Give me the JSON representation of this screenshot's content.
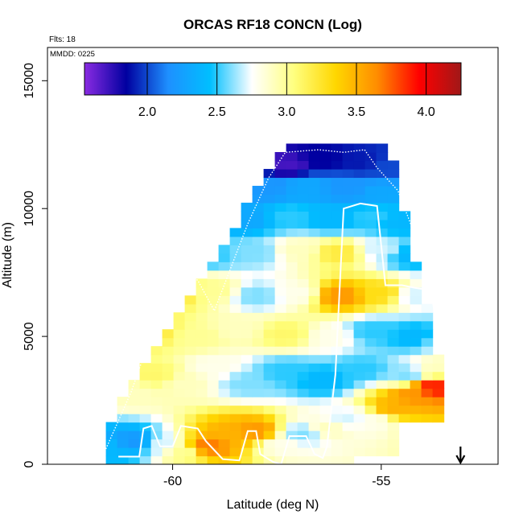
{
  "chart_data": {
    "type": "heatmap",
    "title": "ORCAS RF18 CONCN (Log)",
    "subtitle": "Flts: 18",
    "xlabel": "Latitude (deg N)",
    "ylabel": "Altitude (m)",
    "xlim": [
      -63,
      -52.2
    ],
    "ylim": [
      0,
      16300
    ],
    "x_ticks": [
      -60,
      -55
    ],
    "x_tick_labels": [
      "-60",
      "-55"
    ],
    "y_ticks": [
      0,
      5000,
      10000,
      15000
    ],
    "y_tick_labels": [
      "0",
      "5000",
      "10000",
      "15000"
    ],
    "annotation": "MMDD: 0225",
    "arrow_marker": {
      "x": -53.1,
      "direction": "down"
    },
    "colorbar": {
      "range": [
        1.55,
        4.25
      ],
      "ticks": [
        2.0,
        2.5,
        3.0,
        3.5,
        4.0
      ],
      "tick_labels": [
        "2.0",
        "2.5",
        "3.0",
        "3.5",
        "4.0"
      ],
      "colors": [
        "#8a2be2",
        "#0000a0",
        "#1e90ff",
        "#00bfff",
        "#ffffff",
        "#ffff80",
        "#ffd700",
        "#ff8c00",
        "#ff0000",
        "#a01818"
      ]
    },
    "cell_size": {
      "dx": 0.27,
      "dy": 330
    },
    "anchors": [
      {
        "x": -61.5,
        "y": 600,
        "v": 2.4
      },
      {
        "x": -60.9,
        "y": 900,
        "v": 2.2
      },
      {
        "x": -60.3,
        "y": 800,
        "v": 2.7
      },
      {
        "x": -59.7,
        "y": 500,
        "v": 3.0
      },
      {
        "x": -59.2,
        "y": 700,
        "v": 3.7
      },
      {
        "x": -58.6,
        "y": 1200,
        "v": 3.5
      },
      {
        "x": -58.0,
        "y": 1300,
        "v": 3.6
      },
      {
        "x": -57.4,
        "y": 800,
        "v": 2.8
      },
      {
        "x": -56.9,
        "y": 1200,
        "v": 2.6
      },
      {
        "x": -56.3,
        "y": 1400,
        "v": 2.9
      },
      {
        "x": -55.8,
        "y": 1800,
        "v": 2.7
      },
      {
        "x": -55.2,
        "y": 1700,
        "v": 2.8
      },
      {
        "x": -54.7,
        "y": 2200,
        "v": 3.5
      },
      {
        "x": -54.2,
        "y": 2700,
        "v": 3.6
      },
      {
        "x": -53.8,
        "y": 3000,
        "v": 3.9
      },
      {
        "x": -61.0,
        "y": 2800,
        "v": 2.9
      },
      {
        "x": -60.4,
        "y": 3500,
        "v": 3.1
      },
      {
        "x": -59.7,
        "y": 3200,
        "v": 2.9
      },
      {
        "x": -59.0,
        "y": 3800,
        "v": 2.8
      },
      {
        "x": -58.2,
        "y": 3200,
        "v": 2.6
      },
      {
        "x": -57.3,
        "y": 3600,
        "v": 2.5
      },
      {
        "x": -56.4,
        "y": 3300,
        "v": 2.4
      },
      {
        "x": -55.4,
        "y": 3700,
        "v": 2.5
      },
      {
        "x": -54.4,
        "y": 3500,
        "v": 2.6
      },
      {
        "x": -53.6,
        "y": 3800,
        "v": 2.9
      },
      {
        "x": -60.5,
        "y": 5200,
        "v": 3.2
      },
      {
        "x": -59.4,
        "y": 5000,
        "v": 3.0
      },
      {
        "x": -58.4,
        "y": 5300,
        "v": 2.9
      },
      {
        "x": -57.3,
        "y": 5100,
        "v": 3.1
      },
      {
        "x": -56.2,
        "y": 5000,
        "v": 2.8
      },
      {
        "x": -55.2,
        "y": 5200,
        "v": 2.5
      },
      {
        "x": -54.2,
        "y": 5000,
        "v": 2.4
      },
      {
        "x": -53.5,
        "y": 4800,
        "v": 2.7
      },
      {
        "x": -60.0,
        "y": 6800,
        "v": 3.3
      },
      {
        "x": -59.0,
        "y": 6800,
        "v": 3.0
      },
      {
        "x": -58.0,
        "y": 6600,
        "v": 2.6
      },
      {
        "x": -57.0,
        "y": 6700,
        "v": 2.8
      },
      {
        "x": -56.0,
        "y": 6600,
        "v": 3.6
      },
      {
        "x": -55.0,
        "y": 6700,
        "v": 3.3
      },
      {
        "x": -54.2,
        "y": 6600,
        "v": 2.7
      },
      {
        "x": -59.2,
        "y": 8200,
        "v": 2.5
      },
      {
        "x": -58.0,
        "y": 8300,
        "v": 2.6
      },
      {
        "x": -57.0,
        "y": 8400,
        "v": 2.9
      },
      {
        "x": -56.0,
        "y": 8300,
        "v": 3.2
      },
      {
        "x": -55.0,
        "y": 8400,
        "v": 2.7
      },
      {
        "x": -54.3,
        "y": 8200,
        "v": 2.4
      },
      {
        "x": -58.2,
        "y": 9600,
        "v": 2.3
      },
      {
        "x": -57.2,
        "y": 9700,
        "v": 2.5
      },
      {
        "x": -56.2,
        "y": 9600,
        "v": 2.4
      },
      {
        "x": -55.2,
        "y": 9700,
        "v": 2.5
      },
      {
        "x": -54.6,
        "y": 9500,
        "v": 2.4
      },
      {
        "x": -57.8,
        "y": 10800,
        "v": 2.2
      },
      {
        "x": -56.8,
        "y": 10900,
        "v": 2.3
      },
      {
        "x": -55.8,
        "y": 10800,
        "v": 2.2
      },
      {
        "x": -55.0,
        "y": 10700,
        "v": 2.3
      },
      {
        "x": -57.2,
        "y": 11700,
        "v": 1.7
      },
      {
        "x": -56.4,
        "y": 11900,
        "v": 1.85
      },
      {
        "x": -55.5,
        "y": 11800,
        "v": 1.9
      },
      {
        "x": -54.9,
        "y": 11600,
        "v": 2.0
      }
    ],
    "envelope": [
      {
        "x_left": -61.5,
        "x_right": -58.9,
        "y_bottom": 0,
        "y_top": 1500
      },
      {
        "x_left": -58.9,
        "x_right": -57.8,
        "y_bottom": 0,
        "y_top": 1700
      },
      {
        "x_left": -57.8,
        "x_right": -56.7,
        "y_bottom": 0,
        "y_top": 1500
      },
      {
        "x_left": -56.7,
        "x_right": -55.6,
        "y_bottom": 0,
        "y_top": 1800
      },
      {
        "x_left": -55.6,
        "x_right": -54.6,
        "y_bottom": 300,
        "y_top": 2000
      },
      {
        "x_left": -54.6,
        "x_right": -53.5,
        "y_bottom": 1600,
        "y_top": 2800
      }
    ],
    "flight_track_solid": [
      [
        -61.3,
        300
      ],
      [
        -60.8,
        300
      ],
      [
        -60.7,
        1400
      ],
      [
        -60.5,
        1500
      ],
      [
        -60.3,
        700
      ],
      [
        -60.0,
        700
      ],
      [
        -59.8,
        1500
      ],
      [
        -59.4,
        1400
      ],
      [
        -59.2,
        900
      ],
      [
        -58.8,
        200
      ],
      [
        -58.4,
        150
      ],
      [
        -58.2,
        1300
      ],
      [
        -58.0,
        1300
      ],
      [
        -57.9,
        400
      ],
      [
        -57.6,
        100
      ],
      [
        -57.4,
        0
      ],
      [
        -57.2,
        1100
      ],
      [
        -56.8,
        1100
      ],
      [
        -56.6,
        400
      ],
      [
        -56.4,
        250
      ],
      [
        -56.3,
        700
      ],
      [
        -56.1,
        3500
      ],
      [
        -55.9,
        10000
      ],
      [
        -55.5,
        10200
      ],
      [
        -55.1,
        10100
      ],
      [
        -54.9,
        7000
      ],
      [
        -54.5,
        7000
      ],
      [
        -54.2,
        6900
      ],
      [
        -53.8,
        6800
      ],
      [
        -53.6,
        4500
      ],
      [
        -53.5,
        4400
      ]
    ],
    "flight_track_dotted": [
      [
        -61.6,
        600
      ],
      [
        -61.0,
        2800
      ],
      [
        -60.4,
        5600
      ],
      [
        -59.9,
        7500
      ],
      [
        -59.4,
        7200
      ],
      [
        -59.0,
        6000
      ],
      [
        -58.6,
        7700
      ],
      [
        -58.2,
        9400
      ],
      [
        -57.7,
        11200
      ],
      [
        -57.3,
        12200
      ],
      [
        -56.5,
        12300
      ],
      [
        -55.9,
        12200
      ],
      [
        -55.4,
        12300
      ],
      [
        -55.1,
        11600
      ],
      [
        -54.6,
        10700
      ],
      [
        -54.2,
        9000
      ],
      [
        -53.8,
        7000
      ],
      [
        -53.5,
        5600
      ],
      [
        -53.3,
        4300
      ]
    ]
  }
}
